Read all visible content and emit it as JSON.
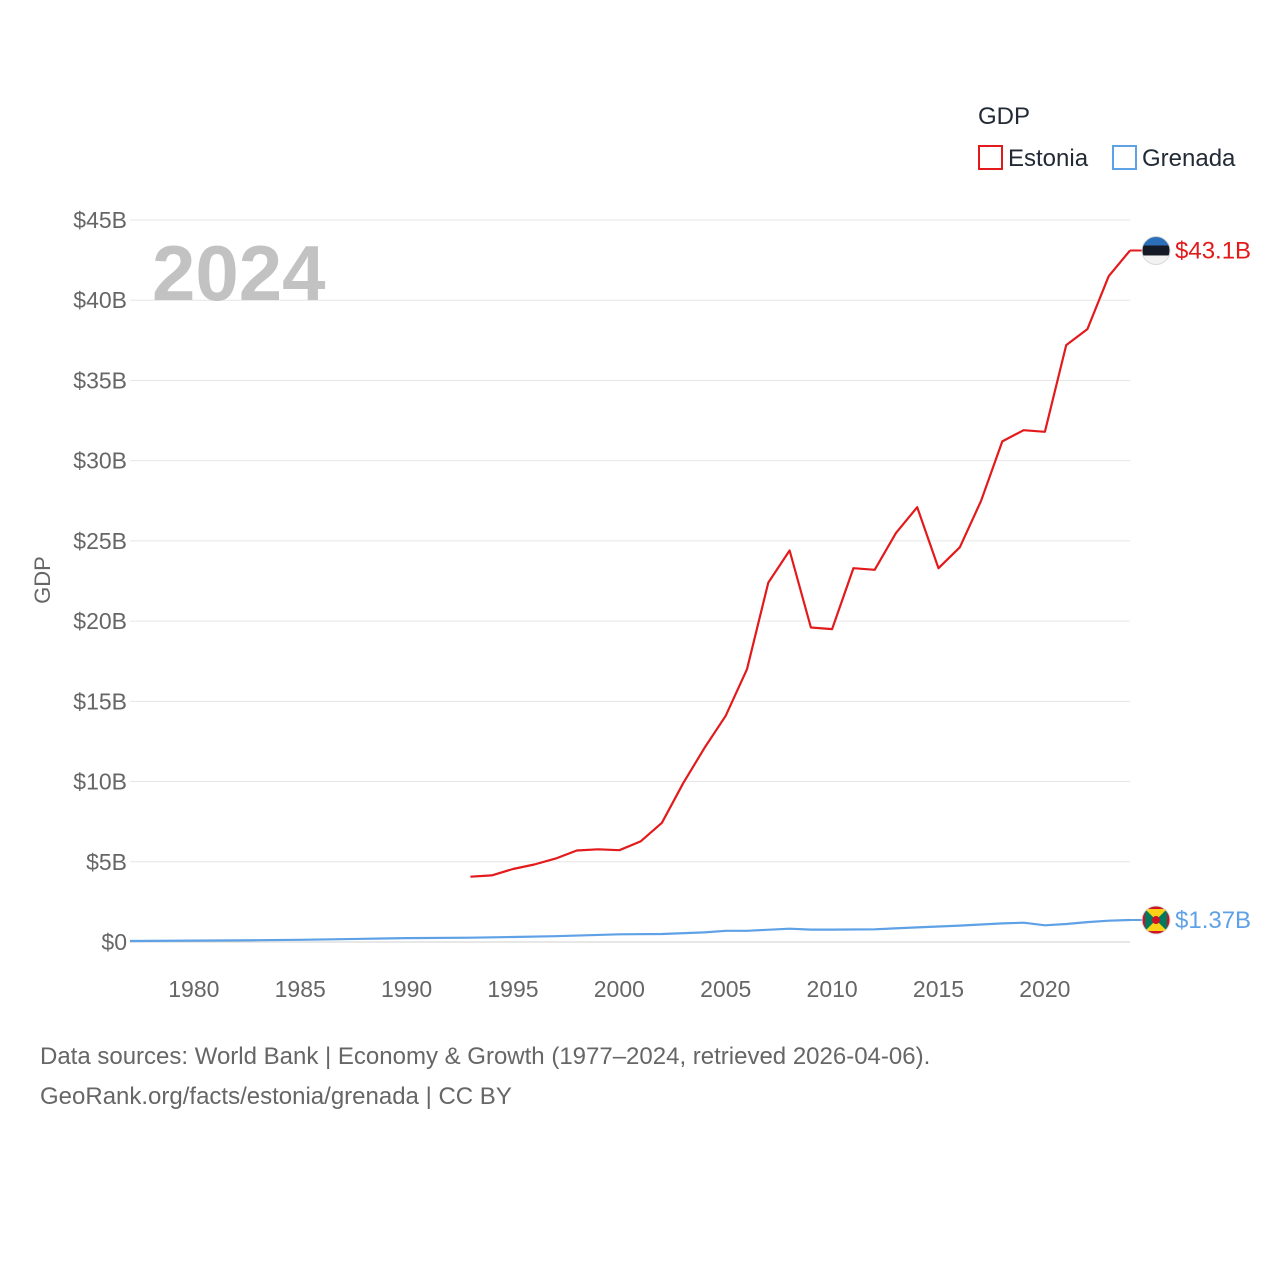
{
  "chart_data": {
    "type": "line",
    "year_label": "2024",
    "ylabel": "GDP",
    "xlabel": "",
    "legend": {
      "title": "GDP",
      "position": "top-right"
    },
    "xlim": [
      1977,
      2024
    ],
    "ylim": [
      0,
      45
    ],
    "y_unit": "billions USD",
    "x_ticks": [
      1980,
      1985,
      1990,
      1995,
      2000,
      2005,
      2010,
      2015,
      2020
    ],
    "x_tick_labels": [
      "1980",
      "1985",
      "1990",
      "1995",
      "2000",
      "2005",
      "2010",
      "2015",
      "2020"
    ],
    "y_ticks": [
      0,
      5,
      10,
      15,
      20,
      25,
      30,
      35,
      40,
      45
    ],
    "y_tick_labels": [
      "$0",
      "$5B",
      "$10B",
      "$15B",
      "$20B",
      "$25B",
      "$30B",
      "$35B",
      "$40B",
      "$45B"
    ],
    "series": [
      {
        "name": "Estonia",
        "color": "#e31a1c",
        "end_label": "$43.1B",
        "marker_icon": "estonia-flag-icon",
        "x": [
          1993,
          1994,
          1995,
          1996,
          1997,
          1998,
          1999,
          2000,
          2001,
          2002,
          2003,
          2004,
          2005,
          2006,
          2007,
          2008,
          2009,
          2010,
          2011,
          2012,
          2013,
          2014,
          2015,
          2016,
          2017,
          2018,
          2019,
          2020,
          2021,
          2022,
          2023,
          2024
        ],
        "values": [
          4.07,
          4.15,
          4.55,
          4.83,
          5.2,
          5.7,
          5.78,
          5.72,
          6.27,
          7.43,
          9.9,
          12.1,
          14.1,
          17.0,
          22.4,
          24.4,
          19.6,
          19.5,
          23.3,
          23.2,
          25.5,
          27.1,
          23.3,
          24.6,
          27.5,
          31.2,
          31.9,
          31.8,
          37.2,
          38.2,
          41.5,
          43.1
        ]
      },
      {
        "name": "Grenada",
        "color": "#5ea1e6",
        "end_label": "$1.37B",
        "marker_icon": "grenada-flag-icon",
        "x": [
          1977,
          1980,
          1983,
          1985,
          1988,
          1990,
          1993,
          1995,
          1997,
          2000,
          2002,
          2004,
          2005,
          2006,
          2008,
          2009,
          2010,
          2012,
          2014,
          2016,
          2018,
          2019,
          2020,
          2021,
          2022,
          2023,
          2024
        ],
        "values": [
          0.06,
          0.09,
          0.11,
          0.14,
          0.2,
          0.24,
          0.27,
          0.31,
          0.36,
          0.48,
          0.5,
          0.6,
          0.7,
          0.7,
          0.83,
          0.77,
          0.77,
          0.79,
          0.91,
          1.02,
          1.16,
          1.2,
          1.04,
          1.12,
          1.24,
          1.33,
          1.37
        ]
      }
    ]
  },
  "footer": {
    "line1": "Data sources: World Bank | Economy & Growth (1977–2024, retrieved 2026-04-06).",
    "line2": "GeoRank.org/facts/estonia/grenada | CC BY"
  }
}
